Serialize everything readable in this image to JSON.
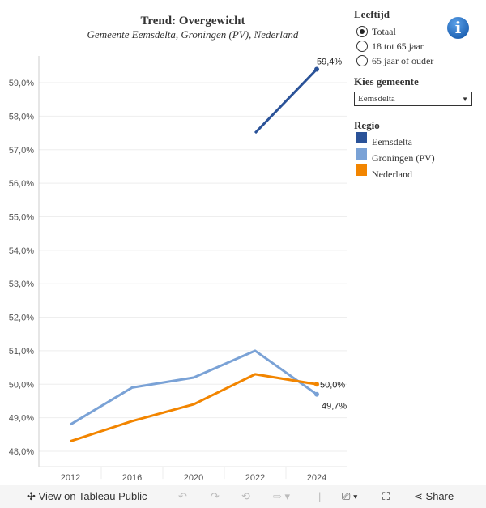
{
  "chart_data": {
    "type": "line",
    "title": "Trend:  Overgewicht",
    "subtitle": "Gemeente  Eemsdelta,  Groningen  (PV),  Nederland",
    "categories": [
      "2012",
      "2016",
      "2020",
      "2022",
      "2024"
    ],
    "y_ticks": [
      "48,0%",
      "49,0%",
      "50,0%",
      "51,0%",
      "52,0%",
      "53,0%",
      "54,0%",
      "55,0%",
      "56,0%",
      "57,0%",
      "58,0%",
      "59,0%"
    ],
    "ylim": [
      47.9,
      59.8
    ],
    "grid": true,
    "series": [
      {
        "name": "Eemsdelta",
        "color": "#2a5298",
        "values": [
          null,
          null,
          null,
          57.5,
          59.4
        ],
        "end_label": "59,4%"
      },
      {
        "name": "Groningen (PV)",
        "color": "#7aa2d6",
        "values": [
          48.8,
          49.9,
          50.2,
          51.0,
          49.7
        ],
        "end_label": "49,7%"
      },
      {
        "name": "Nederland",
        "color": "#f28500",
        "values": [
          48.3,
          48.9,
          49.4,
          50.3,
          50.0
        ],
        "end_label": "50,0%"
      }
    ]
  },
  "filters": {
    "age_label": "Leeftijd",
    "age_options": [
      "Totaal",
      "18  tot  65  jaar",
      "65  jaar  of  ouder"
    ],
    "age_selected": 0,
    "municipality_label": "Kies  gemeente",
    "municipality_value": "Eemsdelta",
    "legend_title": "Regio",
    "legend": [
      "Eemsdelta",
      "Groningen  (PV)",
      "Nederland"
    ]
  },
  "toolbar": {
    "view_label": "View on Tableau Public",
    "share_label": "Share"
  }
}
